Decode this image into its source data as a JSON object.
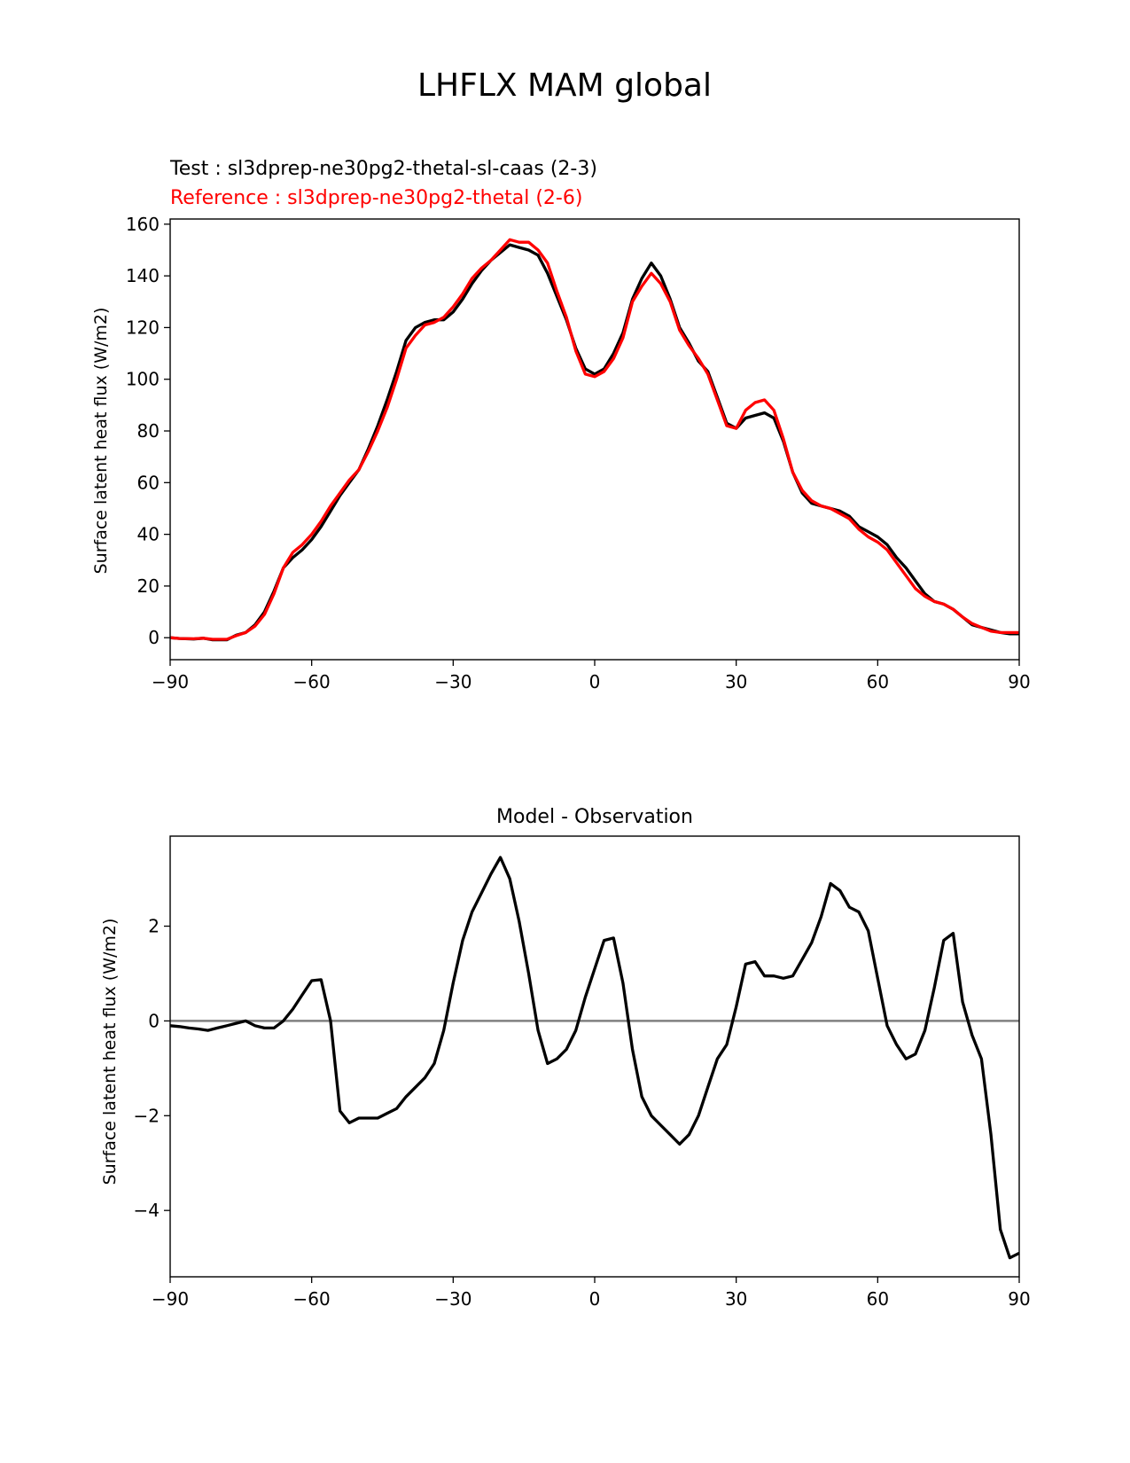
{
  "figure_title": "LHFLX MAM global",
  "colors": {
    "test": "#000000",
    "reference": "#ff0000",
    "zero_line": "#808080",
    "axes": "#000000"
  },
  "chart_data": [
    {
      "type": "line",
      "test_label": "Test : sl3dprep-ne30pg2-thetal-sl-caas (2-3)",
      "reference_label": "Reference : sl3dprep-ne30pg2-thetal (2-6)",
      "title": "",
      "xlabel": "",
      "ylabel": "Surface latent heat flux (W/m2)",
      "xlim": [
        -90,
        90
      ],
      "ylim": [
        -8.5,
        162
      ],
      "xticks": [
        -90,
        -60,
        -30,
        0,
        30,
        60,
        90
      ],
      "xtick_labels": [
        "−90",
        "−60",
        "−30",
        "0",
        "30",
        "60",
        "90"
      ],
      "yticks": [
        0,
        20,
        40,
        60,
        80,
        100,
        120,
        140,
        160
      ],
      "ytick_labels": [
        "0",
        "20",
        "40",
        "60",
        "80",
        "100",
        "120",
        "140",
        "160"
      ],
      "grid": false,
      "series": [
        {
          "name": "Test : sl3dprep-ne30pg2-thetal-sl-caas (2-3)",
          "color": "#000000",
          "points": [
            [
              -90,
              0
            ],
            [
              -88,
              -0.3
            ],
            [
              -85,
              -0.5
            ],
            [
              -83,
              -0.2
            ],
            [
              -81,
              -0.8
            ],
            [
              -78,
              -0.8
            ],
            [
              -76,
              1
            ],
            [
              -74,
              2
            ],
            [
              -72,
              5
            ],
            [
              -70,
              10
            ],
            [
              -68,
              18
            ],
            [
              -66,
              27
            ],
            [
              -64,
              31
            ],
            [
              -62,
              34
            ],
            [
              -60,
              38
            ],
            [
              -58,
              43
            ],
            [
              -56,
              49
            ],
            [
              -54,
              55
            ],
            [
              -52,
              60
            ],
            [
              -50,
              65
            ],
            [
              -48,
              73
            ],
            [
              -46,
              82
            ],
            [
              -44,
              92
            ],
            [
              -42,
              103
            ],
            [
              -40,
              115
            ],
            [
              -38,
              120
            ],
            [
              -36,
              122
            ],
            [
              -34,
              123
            ],
            [
              -32,
              123
            ],
            [
              -30,
              126
            ],
            [
              -28,
              131
            ],
            [
              -26,
              137
            ],
            [
              -24,
              142
            ],
            [
              -22,
              146
            ],
            [
              -20,
              149
            ],
            [
              -18,
              152
            ],
            [
              -16,
              151
            ],
            [
              -14,
              150
            ],
            [
              -12,
              148
            ],
            [
              -10,
              141
            ],
            [
              -8,
              132
            ],
            [
              -6,
              123
            ],
            [
              -4,
              112
            ],
            [
              -2,
              104
            ],
            [
              0,
              102
            ],
            [
              2,
              104
            ],
            [
              4,
              110
            ],
            [
              6,
              118
            ],
            [
              8,
              131
            ],
            [
              10,
              139
            ],
            [
              12,
              145
            ],
            [
              14,
              140
            ],
            [
              16,
              131
            ],
            [
              18,
              120
            ],
            [
              20,
              114
            ],
            [
              22,
              107
            ],
            [
              24,
              103
            ],
            [
              26,
              93
            ],
            [
              28,
              83
            ],
            [
              30,
              81
            ],
            [
              32,
              85
            ],
            [
              34,
              86
            ],
            [
              36,
              87
            ],
            [
              38,
              85
            ],
            [
              40,
              76
            ],
            [
              42,
              64
            ],
            [
              44,
              56
            ],
            [
              46,
              52
            ],
            [
              48,
              51
            ],
            [
              50,
              50
            ],
            [
              52,
              49
            ],
            [
              54,
              47
            ],
            [
              56,
              43
            ],
            [
              58,
              41
            ],
            [
              60,
              39
            ],
            [
              62,
              36
            ],
            [
              64,
              31
            ],
            [
              66,
              27
            ],
            [
              68,
              22
            ],
            [
              70,
              17
            ],
            [
              72,
              14
            ],
            [
              74,
              13
            ],
            [
              76,
              11
            ],
            [
              78,
              8
            ],
            [
              80,
              5
            ],
            [
              82,
              4
            ],
            [
              84,
              3
            ],
            [
              86,
              2
            ],
            [
              88,
              1.5
            ],
            [
              90,
              1.5
            ]
          ]
        },
        {
          "name": "Reference : sl3dprep-ne30pg2-thetal (2-6)",
          "color": "#ff0000",
          "points": [
            [
              -90,
              0
            ],
            [
              -88,
              -0.3
            ],
            [
              -85,
              -0.4
            ],
            [
              -83,
              -0.2
            ],
            [
              -81,
              -0.6
            ],
            [
              -78,
              -0.6
            ],
            [
              -76,
              0.8
            ],
            [
              -74,
              2
            ],
            [
              -72,
              4.5
            ],
            [
              -70,
              9
            ],
            [
              -68,
              17
            ],
            [
              -66,
              27
            ],
            [
              -64,
              33
            ],
            [
              -62,
              36
            ],
            [
              -60,
              40
            ],
            [
              -58,
              45
            ],
            [
              -56,
              51
            ],
            [
              -54,
              56
            ],
            [
              -52,
              61
            ],
            [
              -50,
              65
            ],
            [
              -48,
              72
            ],
            [
              -46,
              80
            ],
            [
              -44,
              89
            ],
            [
              -42,
              100
            ],
            [
              -40,
              112
            ],
            [
              -38,
              117
            ],
            [
              -36,
              121
            ],
            [
              -34,
              122
            ],
            [
              -32,
              124
            ],
            [
              -30,
              128
            ],
            [
              -28,
              133
            ],
            [
              -26,
              139
            ],
            [
              -24,
              143
            ],
            [
              -22,
              146
            ],
            [
              -20,
              150
            ],
            [
              -18,
              154
            ],
            [
              -16,
              153
            ],
            [
              -14,
              153
            ],
            [
              -12,
              150
            ],
            [
              -10,
              145
            ],
            [
              -8,
              134
            ],
            [
              -6,
              124
            ],
            [
              -4,
              111
            ],
            [
              -2,
              102
            ],
            [
              0,
              101
            ],
            [
              2,
              103
            ],
            [
              4,
              108
            ],
            [
              6,
              116
            ],
            [
              8,
              130
            ],
            [
              10,
              136
            ],
            [
              12,
              141
            ],
            [
              14,
              137
            ],
            [
              16,
              130
            ],
            [
              18,
              119
            ],
            [
              20,
              113
            ],
            [
              22,
              108
            ],
            [
              24,
              102
            ],
            [
              26,
              92
            ],
            [
              28,
              82
            ],
            [
              30,
              81
            ],
            [
              32,
              88
            ],
            [
              34,
              91
            ],
            [
              36,
              92
            ],
            [
              38,
              88
            ],
            [
              40,
              77
            ],
            [
              42,
              64
            ],
            [
              44,
              57
            ],
            [
              46,
              53
            ],
            [
              48,
              51
            ],
            [
              50,
              50
            ],
            [
              52,
              48
            ],
            [
              54,
              46
            ],
            [
              56,
              42
            ],
            [
              58,
              39
            ],
            [
              60,
              37
            ],
            [
              62,
              34
            ],
            [
              64,
              29
            ],
            [
              66,
              24
            ],
            [
              68,
              19
            ],
            [
              70,
              16
            ],
            [
              72,
              14
            ],
            [
              74,
              13
            ],
            [
              76,
              11
            ],
            [
              78,
              8
            ],
            [
              80,
              5.5
            ],
            [
              82,
              4
            ],
            [
              84,
              2.5
            ],
            [
              86,
              2
            ],
            [
              88,
              2
            ],
            [
              90,
              2
            ]
          ]
        }
      ]
    },
    {
      "type": "line",
      "title": "Model - Observation",
      "xlabel": "",
      "ylabel": "Surface latent heat flux (W/m2)",
      "xlim": [
        -90,
        90
      ],
      "ylim": [
        -5.4,
        3.9
      ],
      "xticks": [
        -90,
        -60,
        -30,
        0,
        30,
        60,
        90
      ],
      "xtick_labels": [
        "−90",
        "−60",
        "−30",
        "0",
        "30",
        "60",
        "90"
      ],
      "yticks": [
        2,
        0,
        -2,
        -4
      ],
      "ytick_labels": [
        "2",
        "0",
        "−2",
        "−4"
      ],
      "grid": false,
      "reference_line_y": 0,
      "series": [
        {
          "color": "#000000",
          "points": [
            [
              -90,
              -0.1
            ],
            [
              -88,
              -0.12
            ],
            [
              -86,
              -0.15
            ],
            [
              -84,
              -0.17
            ],
            [
              -82,
              -0.2
            ],
            [
              -80,
              -0.15
            ],
            [
              -78,
              -0.1
            ],
            [
              -76,
              -0.05
            ],
            [
              -74,
              0
            ],
            [
              -72,
              -0.1
            ],
            [
              -70,
              -0.15
            ],
            [
              -68,
              -0.15
            ],
            [
              -66,
              0
            ],
            [
              -64,
              0.25
            ],
            [
              -62,
              0.55
            ],
            [
              -60,
              0.85
            ],
            [
              -58,
              0.87
            ],
            [
              -56,
              0
            ],
            [
              -54,
              -1.9
            ],
            [
              -52,
              -2.15
            ],
            [
              -50,
              -2.05
            ],
            [
              -48,
              -2.05
            ],
            [
              -46,
              -2.05
            ],
            [
              -44,
              -1.95
            ],
            [
              -42,
              -1.85
            ],
            [
              -40,
              -1.6
            ],
            [
              -38,
              -1.4
            ],
            [
              -36,
              -1.2
            ],
            [
              -34,
              -0.9
            ],
            [
              -32,
              -0.2
            ],
            [
              -30,
              0.8
            ],
            [
              -28,
              1.7
            ],
            [
              -26,
              2.3
            ],
            [
              -24,
              2.7
            ],
            [
              -22,
              3.1
            ],
            [
              -20,
              3.45
            ],
            [
              -18,
              3.0
            ],
            [
              -16,
              2.1
            ],
            [
              -14,
              1.0
            ],
            [
              -12,
              -0.2
            ],
            [
              -10,
              -0.9
            ],
            [
              -8,
              -0.8
            ],
            [
              -6,
              -0.6
            ],
            [
              -4,
              -0.2
            ],
            [
              -2,
              0.5
            ],
            [
              0,
              1.1
            ],
            [
              2,
              1.7
            ],
            [
              4,
              1.75
            ],
            [
              6,
              0.8
            ],
            [
              8,
              -0.6
            ],
            [
              10,
              -1.6
            ],
            [
              12,
              -2.0
            ],
            [
              14,
              -2.2
            ],
            [
              16,
              -2.4
            ],
            [
              18,
              -2.6
            ],
            [
              20,
              -2.4
            ],
            [
              22,
              -2.0
            ],
            [
              24,
              -1.4
            ],
            [
              26,
              -0.8
            ],
            [
              28,
              -0.5
            ],
            [
              30,
              0.3
            ],
            [
              32,
              1.2
            ],
            [
              34,
              1.25
            ],
            [
              36,
              0.95
            ],
            [
              38,
              0.95
            ],
            [
              40,
              0.9
            ],
            [
              42,
              0.95
            ],
            [
              44,
              1.3
            ],
            [
              46,
              1.65
            ],
            [
              48,
              2.2
            ],
            [
              50,
              2.9
            ],
            [
              52,
              2.75
            ],
            [
              54,
              2.4
            ],
            [
              56,
              2.3
            ],
            [
              58,
              1.9
            ],
            [
              60,
              0.9
            ],
            [
              62,
              -0.1
            ],
            [
              64,
              -0.5
            ],
            [
              66,
              -0.8
            ],
            [
              68,
              -0.7
            ],
            [
              70,
              -0.2
            ],
            [
              72,
              0.7
            ],
            [
              74,
              1.7
            ],
            [
              76,
              1.85
            ],
            [
              78,
              0.4
            ],
            [
              80,
              -0.3
            ],
            [
              82,
              -0.8
            ],
            [
              84,
              -2.4
            ],
            [
              86,
              -4.4
            ],
            [
              88,
              -5.0
            ],
            [
              90,
              -4.9
            ]
          ]
        }
      ],
      "series_x_note_free": true
    }
  ]
}
